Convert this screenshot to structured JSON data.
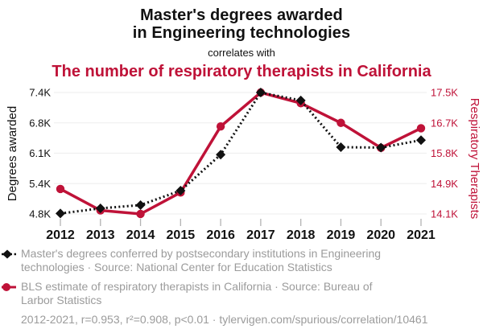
{
  "header": {
    "title": "Master's degrees awarded\nin Engineering technologies",
    "connector": "correlates with",
    "subtitle": "The number of respiratory therapists in California"
  },
  "colors": {
    "red": "#bf1238",
    "black": "#111111",
    "legend_gray": "#9b9b9b",
    "gridline": "#f0f0f0",
    "tick": "#b3b3b3"
  },
  "chart_data": {
    "type": "line",
    "title": "Master's degrees awarded in Engineering technologies correlates with The number of respiratory therapists in California",
    "x": [
      2012,
      2013,
      2014,
      2015,
      2016,
      2017,
      2018,
      2019,
      2020,
      2021
    ],
    "series": [
      {
        "name": "Master's degrees conferred by postsecondary institutions in Engineering technologies",
        "axis": "left",
        "color": "#111111",
        "line_style": "dashed",
        "marker": "diamond",
        "values_k": [
          4.81,
          4.92,
          4.99,
          5.3,
          6.07,
          7.4,
          7.23,
          6.23,
          6.22,
          6.38
        ]
      },
      {
        "name": "BLS estimate of respiratory therapists in California",
        "axis": "right",
        "color": "#bf1238",
        "line_style": "solid",
        "marker": "circle",
        "values_k": [
          14.8,
          14.2,
          14.1,
          14.7,
          16.55,
          17.5,
          17.2,
          16.65,
          15.95,
          16.5
        ]
      }
    ],
    "left_axis": {
      "label": "Degrees awarded",
      "range_k": [
        4.8,
        7.4
      ],
      "tick_labels_bottom_to_top": [
        "4.8K",
        "5.4K",
        "6.1K",
        "6.8K",
        "7.4K"
      ]
    },
    "right_axis": {
      "label": "Respiratory Therapists",
      "range_k": [
        14.1,
        17.5
      ],
      "tick_labels_bottom_to_top": [
        "14.1K",
        "14.9K",
        "15.8K",
        "16.7K",
        "17.5K"
      ]
    },
    "grid": true,
    "legend_position": "below"
  },
  "legend": {
    "items": [
      {
        "text": "Master's degrees conferred by postsecondary institutions in Engineering\ntechnologies · Source: National Center for Education Statistics"
      },
      {
        "text": "BLS estimate of respiratory therapists in California · Source: Bureau of\nLarbor Statistics"
      }
    ]
  },
  "footer": {
    "stats": "2012-2021, r=0.953, r²=0.908, p<0.01 · tylervigen.com/spurious/correlation/10461"
  }
}
